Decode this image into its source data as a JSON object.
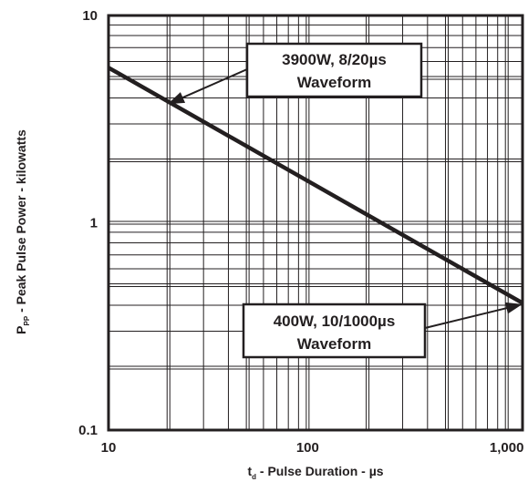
{
  "chart_data": {
    "type": "line",
    "title": "",
    "x_scale": "log",
    "y_scale": "log",
    "xlim": [
      10,
      1200
    ],
    "ylim": [
      0.1,
      10
    ],
    "grid": true,
    "x_ticks": [
      {
        "value": 10,
        "label": "10"
      },
      {
        "value": 100,
        "label": "100"
      },
      {
        "value": 1000,
        "label": "1,000"
      }
    ],
    "y_ticks": [
      {
        "value": 10,
        "label": "10"
      },
      {
        "value": 1,
        "label": "1"
      },
      {
        "value": 0.1,
        "label": "0.1"
      }
    ],
    "xlabel": {
      "main": "t",
      "sub": "d",
      "rest": " - Pulse Duration - µs"
    },
    "ylabel": {
      "main": "P",
      "sub": "PP",
      "rest": " - Peak Pulse Power - kilowatts"
    },
    "series": [
      {
        "x": [
          10,
          1200
        ],
        "y": [
          5.6,
          0.41
        ]
      }
    ],
    "annotations": [
      {
        "lines": [
          "3900W, 8/20µs",
          "Waveform"
        ],
        "points_to": {
          "x": 20,
          "y": 3.9
        }
      },
      {
        "lines": [
          "400W, 10/1000µs",
          "Waveform"
        ],
        "points_to": {
          "x": 1200,
          "y": 0.41
        }
      }
    ]
  }
}
